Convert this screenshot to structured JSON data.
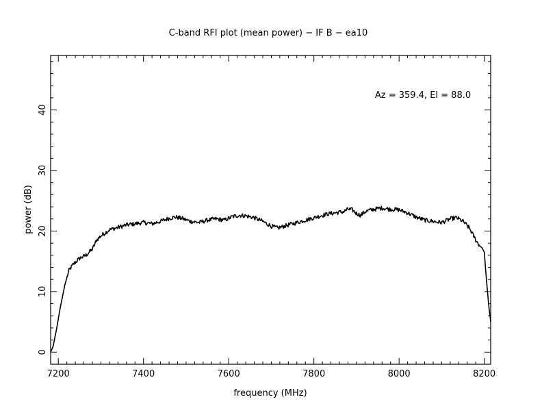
{
  "chart_data": {
    "type": "line",
    "title": "C-band RFI plot (mean power) − IF B − ea10",
    "xlabel": "frequency (MHz)",
    "ylabel": "power (dB)",
    "xlim": [
      7182,
      8215
    ],
    "ylim": [
      -2,
      49
    ],
    "xticks": [
      7200,
      7400,
      7600,
      7800,
      8000,
      8200
    ],
    "yticks": [
      0,
      10,
      20,
      30,
      40
    ],
    "xtick_labels": [
      "7200",
      "7400",
      "7600",
      "7800",
      "8000",
      "8200"
    ],
    "ytick_labels": [
      "0",
      "10",
      "20",
      "30",
      "40"
    ],
    "annotation": "Az = 359.4, El = 88.0",
    "line_color": "#000000",
    "grid": false,
    "series": [
      {
        "x": [
          7182,
          7188,
          7195,
          7205,
          7215,
          7225,
          7235,
          7250,
          7265,
          7280,
          7290,
          7300,
          7320,
          7340,
          7360,
          7380,
          7400,
          7420,
          7440,
          7460,
          7475,
          7490,
          7510,
          7530,
          7550,
          7570,
          7590,
          7610,
          7625,
          7640,
          7660,
          7680,
          7700,
          7715,
          7730,
          7750,
          7770,
          7790,
          7810,
          7830,
          7850,
          7870,
          7880,
          7890,
          7900,
          7910,
          7920,
          7940,
          7960,
          7980,
          8000,
          8020,
          8040,
          8060,
          8080,
          8100,
          8120,
          8135,
          8150,
          8165,
          8180,
          8190,
          8195,
          8200,
          8205,
          8210,
          8215
        ],
        "y": [
          0.0,
          1.0,
          3.5,
          7.5,
          11.0,
          13.5,
          14.5,
          15.5,
          16.0,
          17.0,
          18.5,
          19.2,
          20.2,
          20.6,
          21.0,
          21.2,
          21.4,
          21.2,
          21.6,
          22.1,
          22.3,
          22.1,
          21.6,
          21.4,
          21.8,
          22.0,
          21.8,
          22.4,
          22.6,
          22.5,
          22.2,
          21.6,
          20.8,
          20.5,
          20.8,
          21.2,
          21.6,
          22.0,
          22.4,
          22.8,
          23.0,
          23.2,
          23.6,
          23.5,
          22.9,
          22.6,
          23.2,
          23.6,
          23.8,
          23.6,
          23.5,
          23.0,
          22.3,
          21.8,
          21.6,
          21.4,
          22.0,
          22.2,
          21.6,
          20.5,
          18.5,
          17.5,
          17.2,
          16.5,
          12.0,
          8.0,
          5.0
        ]
      }
    ]
  }
}
